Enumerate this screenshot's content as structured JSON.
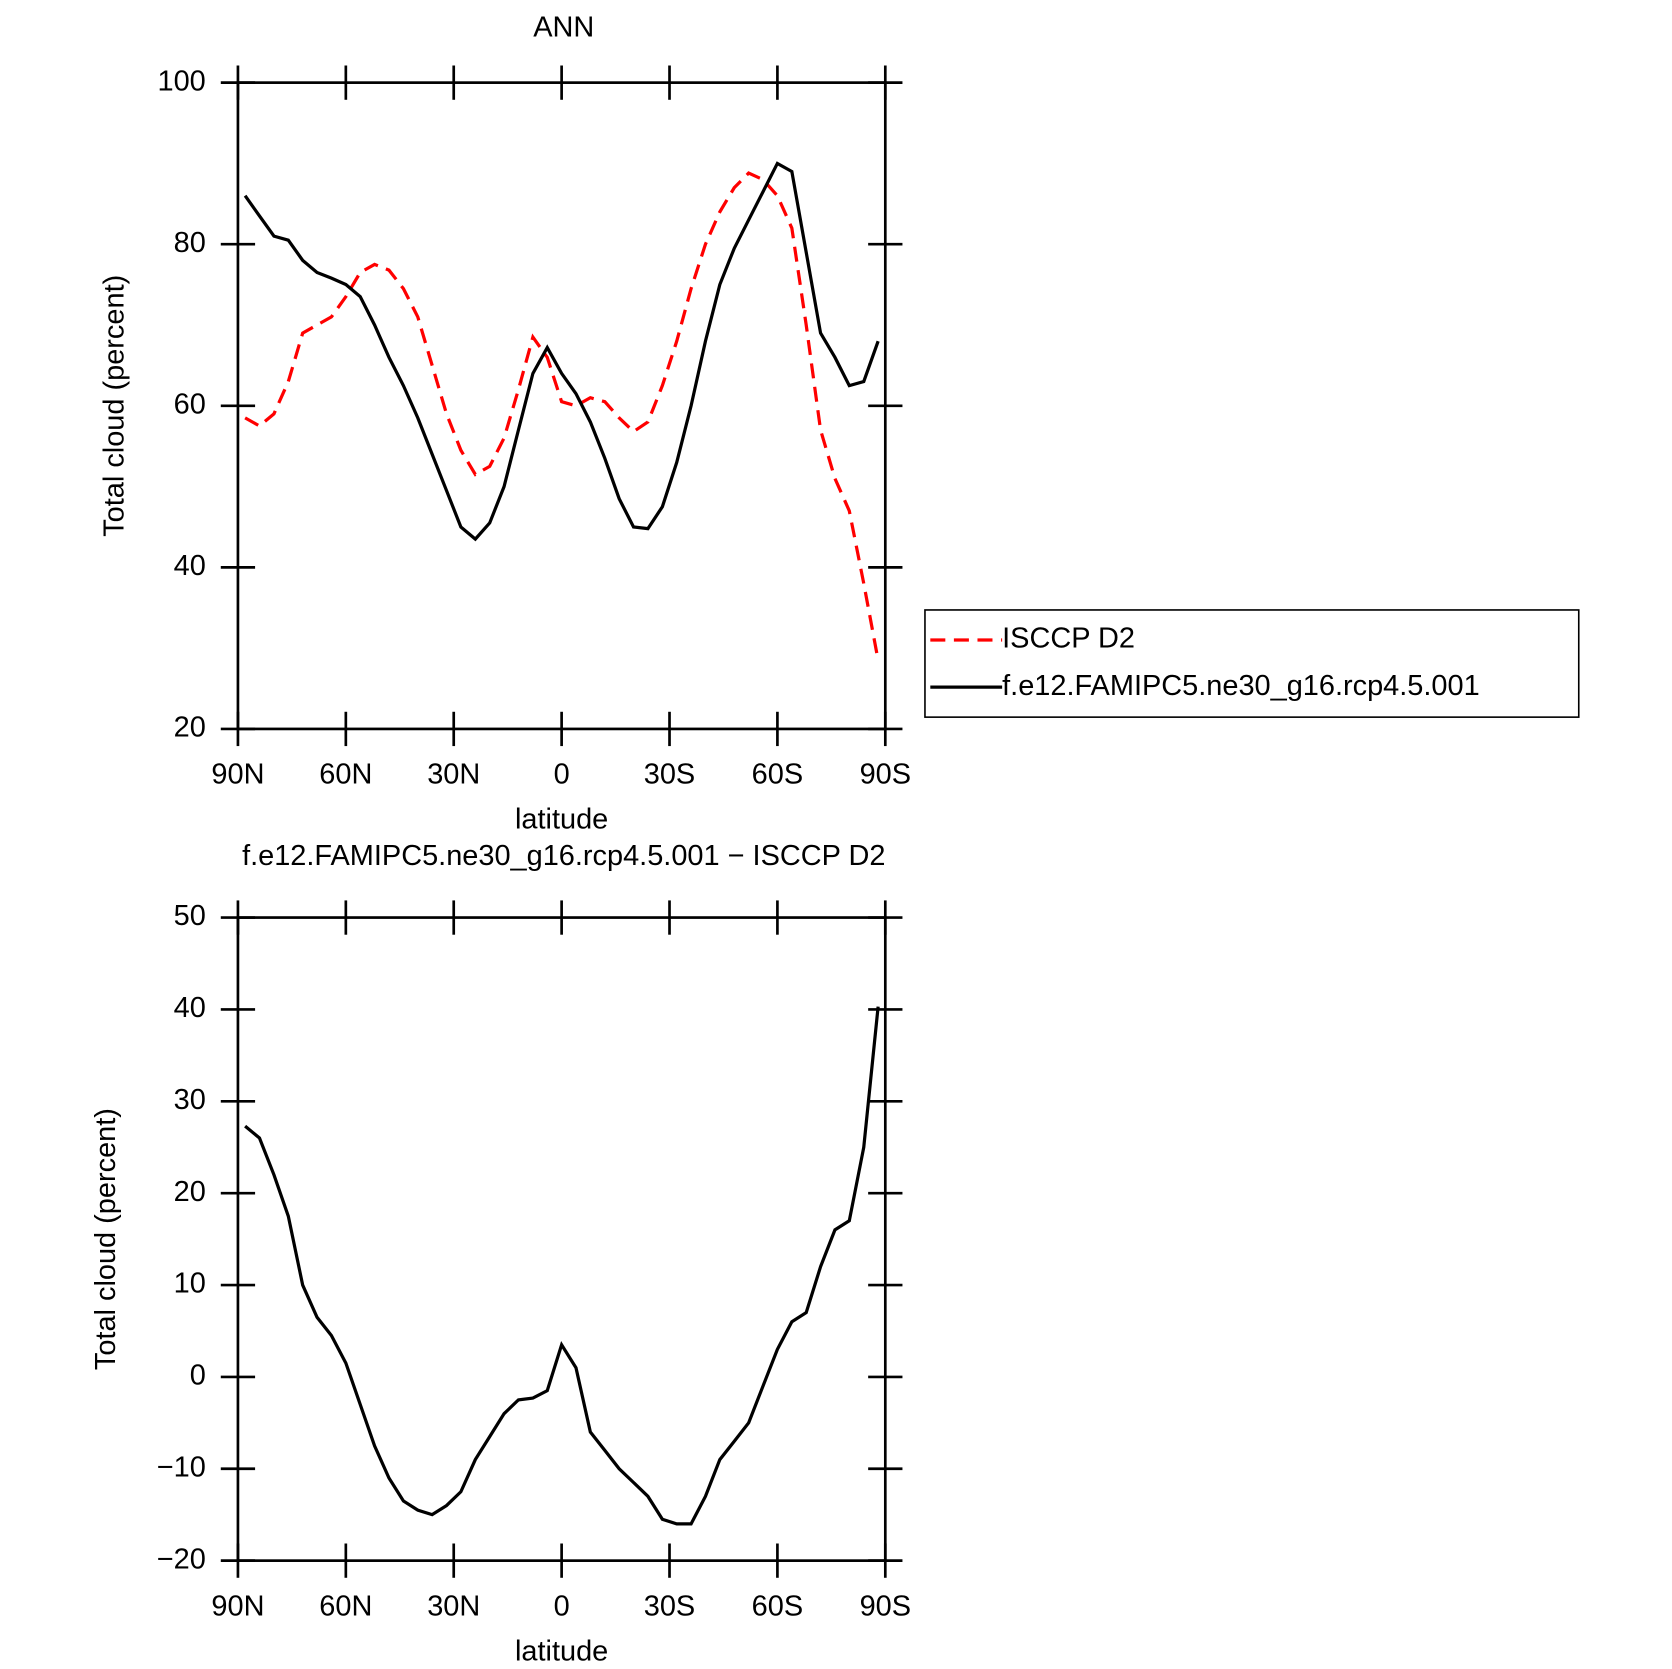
{
  "chart_data": [
    {
      "type": "line",
      "title": "ANN",
      "xlabel": "latitude",
      "ylabel": "Total cloud (percent)",
      "x": [
        88,
        84,
        80,
        76,
        72,
        68,
        64,
        60,
        56,
        52,
        48,
        44,
        40,
        36,
        32,
        28,
        24,
        20,
        16,
        12,
        8,
        4,
        0,
        -4,
        -8,
        -12,
        -16,
        -20,
        -24,
        -28,
        -32,
        -36,
        -40,
        -44,
        -48,
        -52,
        -56,
        -60,
        -64,
        -68,
        -72,
        -76,
        -80,
        -84,
        -88
      ],
      "series": [
        {
          "name": "ISCCP D2",
          "color": "#ff0000",
          "style": "dashed",
          "values": [
            58.5,
            57.5,
            59,
            63,
            69,
            70,
            71,
            73.5,
            76.5,
            77.5,
            76.8,
            74.5,
            71,
            65,
            59,
            54.5,
            51.5,
            52.5,
            56,
            62,
            68.5,
            66,
            60.5,
            60,
            61,
            60.5,
            58.5,
            56.8,
            58,
            62.5,
            68,
            74.5,
            80,
            84,
            87,
            88.8,
            88,
            86,
            82,
            70,
            57,
            51,
            47,
            38,
            28.5
          ]
        },
        {
          "name": "f.e12.FAMIPC5.ne30_g16.rcp4.5.001",
          "color": "#000000",
          "style": "solid",
          "values": [
            86,
            83.5,
            81,
            80.5,
            78,
            76.5,
            75.8,
            75,
            73.5,
            70,
            66,
            62.5,
            58.5,
            54,
            49.5,
            45,
            43.5,
            45.5,
            50,
            57,
            64,
            67.2,
            64,
            61.5,
            58,
            53.5,
            48.5,
            45,
            44.8,
            47.5,
            53,
            60,
            68,
            75,
            79.5,
            83,
            86.5,
            90,
            89,
            79,
            69,
            66,
            62.5,
            63,
            68
          ]
        }
      ],
      "xlim": [
        90,
        -90
      ],
      "xticks": [
        {
          "value": 90,
          "label": "90N"
        },
        {
          "value": 60,
          "label": "60N"
        },
        {
          "value": 30,
          "label": "30N"
        },
        0,
        {
          "value": -30,
          "label": "30S"
        },
        {
          "value": -60,
          "label": "60S"
        },
        {
          "value": -90,
          "label": "90S"
        }
      ],
      "ylim": [
        20,
        100
      ],
      "yticks": [
        20,
        40,
        60,
        80,
        100
      ],
      "legend": "right"
    },
    {
      "type": "line",
      "title": "f.e12.FAMIPC5.ne30_g16.rcp4.5.001 − ISCCP D2",
      "xlabel": "latitude",
      "ylabel": "Total cloud (percent)",
      "x": [
        88,
        84,
        80,
        76,
        72,
        68,
        64,
        60,
        56,
        52,
        48,
        44,
        40,
        36,
        32,
        28,
        24,
        20,
        16,
        12,
        8,
        4,
        0,
        -4,
        -8,
        -12,
        -16,
        -20,
        -24,
        -28,
        -32,
        -36,
        -40,
        -44,
        -48,
        -52,
        -56,
        -60,
        -64,
        -68,
        -72,
        -76,
        -80,
        -84,
        -88
      ],
      "series": [
        {
          "color": "#000000",
          "style": "solid",
          "values": [
            27.3,
            26,
            22,
            17.5,
            10,
            6.5,
            4.5,
            1.5,
            -3,
            -7.5,
            -11,
            -13.5,
            -14.5,
            -15,
            -14,
            -12.5,
            -9,
            -6.5,
            -4,
            -2.5,
            -2.3,
            -1.5,
            3.5,
            1,
            -6,
            -8,
            -10,
            -11.5,
            -13,
            -15.5,
            -16,
            -16,
            -13,
            -9,
            -7,
            -5,
            -1,
            3,
            6,
            7,
            12,
            16,
            17,
            25,
            40.3
          ]
        }
      ],
      "xlim": [
        90,
        -90
      ],
      "xticks": [
        {
          "value": 90,
          "label": "90N"
        },
        {
          "value": 60,
          "label": "60N"
        },
        {
          "value": 30,
          "label": "30N"
        },
        0,
        {
          "value": -30,
          "label": "30S"
        },
        {
          "value": -60,
          "label": "60S"
        },
        {
          "value": -90,
          "label": "90S"
        }
      ],
      "ylim": [
        -20,
        50
      ],
      "yticks": [
        {
          "value": -20,
          "label": "−20"
        },
        {
          "value": -10,
          "label": "−10"
        },
        0,
        10,
        20,
        30,
        40,
        50
      ]
    }
  ]
}
